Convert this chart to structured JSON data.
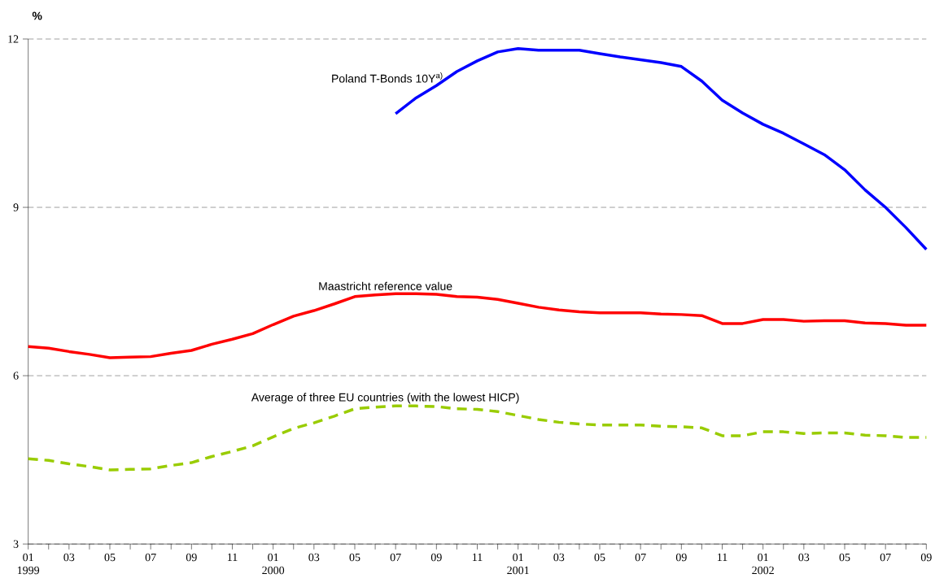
{
  "chart_data": {
    "type": "line",
    "ylabel": "%",
    "categories": [
      "01 1999",
      null,
      "03",
      null,
      "05",
      null,
      "07",
      null,
      "09",
      null,
      "11",
      null,
      "01 2000",
      null,
      "03",
      null,
      "05",
      null,
      "07",
      null,
      "09",
      null,
      "11",
      null,
      "01 2001",
      null,
      "03",
      null,
      "05",
      null,
      "07",
      null,
      "09",
      null,
      "11",
      null,
      "01 2002",
      null,
      "03",
      null,
      "05",
      null,
      "07",
      null,
      "09"
    ],
    "series": [
      {
        "name": "Poland T-Bonds 10Y$^{a)}$",
        "color": "#0000ff",
        "line_style": "solid",
        "values": [
          null,
          null,
          null,
          null,
          null,
          null,
          null,
          null,
          null,
          null,
          null,
          null,
          null,
          null,
          null,
          null,
          null,
          null,
          10.67,
          10.95,
          11.17,
          11.42,
          11.61,
          11.77,
          11.83,
          11.8,
          11.8,
          11.8,
          11.74,
          11.68,
          11.63,
          11.58,
          11.51,
          11.25,
          10.91,
          10.68,
          10.48,
          10.32,
          10.13,
          9.94,
          9.67,
          9.31,
          9.0,
          8.64,
          8.25
        ]
      },
      {
        "name": "Maastricht reference value",
        "color": "#ff0000",
        "line_style": "solid",
        "values": [
          6.52,
          6.49,
          6.43,
          6.38,
          6.32,
          6.33,
          6.34,
          6.4,
          6.45,
          6.56,
          6.65,
          6.75,
          6.91,
          7.06,
          7.16,
          7.28,
          7.41,
          7.44,
          7.46,
          7.46,
          7.45,
          7.41,
          7.4,
          7.36,
          7.29,
          7.22,
          7.17,
          7.14,
          7.12,
          7.12,
          7.12,
          7.1,
          7.09,
          7.07,
          6.93,
          6.93,
          7.0,
          7.0,
          6.97,
          6.98,
          6.98,
          6.94,
          6.93,
          6.9,
          6.9
        ]
      },
      {
        "name": "Average of three EU countries (with the lowest HICP)",
        "color": "#99cc00",
        "line_style": "dashed",
        "values": [
          4.52,
          4.49,
          4.43,
          4.38,
          4.32,
          4.33,
          4.34,
          4.4,
          4.45,
          4.56,
          4.65,
          4.75,
          4.91,
          5.06,
          5.16,
          5.28,
          5.41,
          5.44,
          5.46,
          5.46,
          5.45,
          5.41,
          5.4,
          5.36,
          5.29,
          5.22,
          5.17,
          5.14,
          5.12,
          5.12,
          5.12,
          5.1,
          5.09,
          5.07,
          4.93,
          4.93,
          5.0,
          5.0,
          4.97,
          4.98,
          4.98,
          4.94,
          4.93,
          4.9,
          4.9
        ]
      }
    ],
    "ylim": [
      3,
      12
    ],
    "yticks": [
      3,
      6,
      9,
      12
    ],
    "grid": "y",
    "marker": "none"
  }
}
